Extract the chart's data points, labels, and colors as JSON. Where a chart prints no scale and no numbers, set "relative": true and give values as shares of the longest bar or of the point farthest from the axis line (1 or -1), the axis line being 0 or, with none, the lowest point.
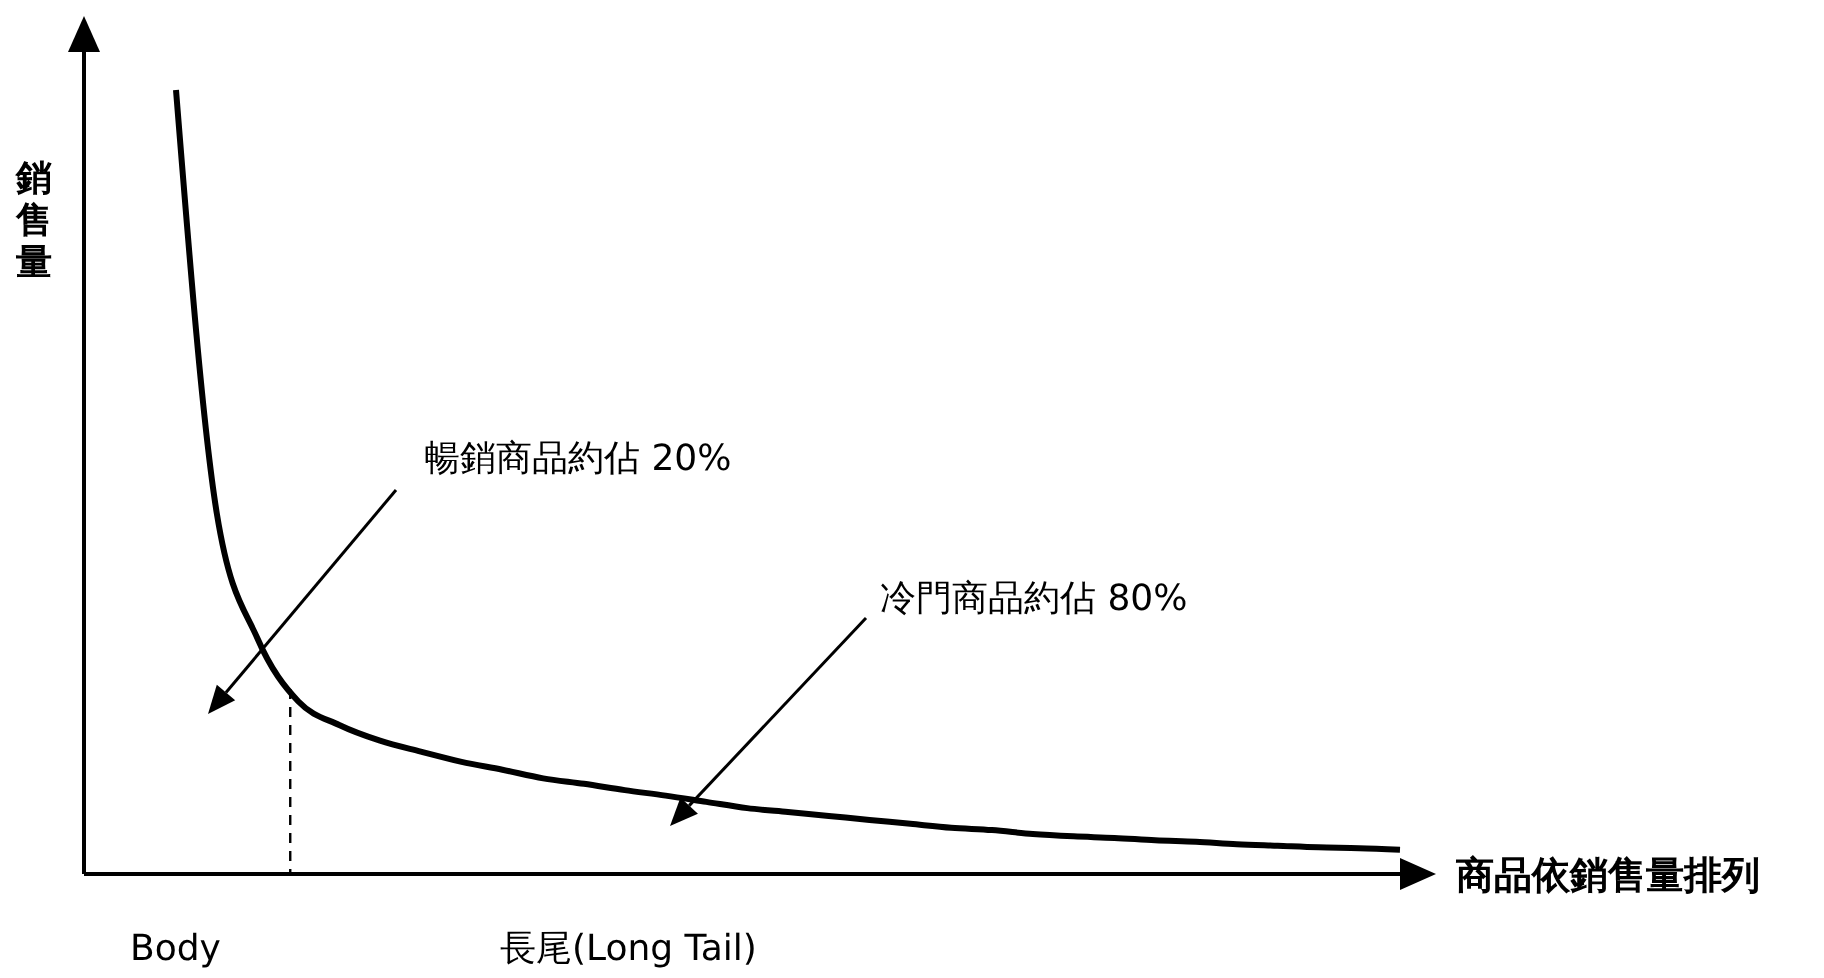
{
  "chart_data": {
    "type": "line",
    "relative": true,
    "xlabel": "商品依銷售量排列",
    "ylabel": "銷售量",
    "categories": [
      null,
      null,
      null,
      null,
      null,
      null,
      null,
      null,
      null,
      null,
      null,
      null,
      null,
      null,
      null,
      null,
      null,
      null,
      null,
      null,
      null,
      null,
      null,
      null,
      null,
      null,
      null,
      null,
      null,
      null,
      null
    ],
    "series": [
      {
        "color": "#000000",
        "values": [
          1.0,
          0.46,
          0.3,
          0.22,
          0.19,
          0.17,
          0.156,
          0.143,
          0.133,
          0.122,
          0.115,
          0.107,
          0.1,
          0.092,
          0.084,
          0.079,
          0.074,
          0.069,
          0.064,
          0.059,
          0.056,
          0.051,
          0.048,
          0.046,
          0.043,
          0.041,
          0.038,
          0.036,
          0.034,
          0.033,
          0.031
        ]
      }
    ],
    "annotations": [
      "暢銷商品約佔 20%",
      "冷門商品約佔 80%",
      "Body",
      "長尾(Long Tail)"
    ],
    "marker": "none",
    "line_style": "solid"
  }
}
